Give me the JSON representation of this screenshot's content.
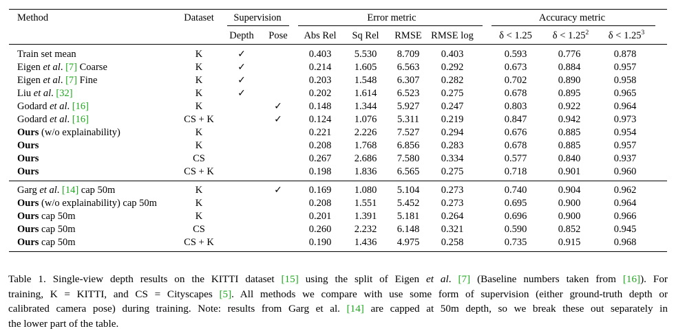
{
  "table": {
    "headers": {
      "method": "Method",
      "dataset": "Dataset",
      "supervision": "Supervision",
      "error_metric": "Error metric",
      "accuracy_metric": "Accuracy metric",
      "depth": "Depth",
      "pose": "Pose",
      "abs_rel": "Abs Rel",
      "sq_rel": "Sq Rel",
      "rmse": "RMSE",
      "rmse_log": "RMSE log",
      "delta1": "δ < 1.25",
      "delta2_base": "δ < 1.25",
      "delta2_exp": "2",
      "delta3_base": "δ < 1.25",
      "delta3_exp": "3"
    },
    "check_mark": "✓",
    "group1": [
      {
        "m1": "Train set mean",
        "ds": "K",
        "depth": true,
        "pose": false,
        "v": [
          "0.403",
          "5.530",
          "8.709",
          "0.403",
          "0.593",
          "0.776",
          "0.878"
        ]
      },
      {
        "m1": "Eigen ",
        "mi": "et al",
        "m2": ". ",
        "cite": "[7]",
        "m3": " Coarse",
        "ds": "K",
        "depth": true,
        "pose": false,
        "v": [
          "0.214",
          "1.605",
          "6.563",
          "0.292",
          "0.673",
          "0.884",
          "0.957"
        ]
      },
      {
        "m1": "Eigen ",
        "mi": "et al",
        "m2": ". ",
        "cite": "[7]",
        "m3": " Fine",
        "ds": "K",
        "depth": true,
        "pose": false,
        "v": [
          "0.203",
          "1.548",
          "6.307",
          "0.282",
          "0.702",
          "0.890",
          "0.958"
        ]
      },
      {
        "m1": "Liu ",
        "mi": "et al",
        "m2": ". ",
        "cite": "[32]",
        "ds": "K",
        "depth": true,
        "pose": false,
        "v": [
          "0.202",
          "1.614",
          "6.523",
          "0.275",
          "0.678",
          "0.895",
          "0.965"
        ]
      },
      {
        "m1": "Godard ",
        "mi": "et al",
        "m2": ". ",
        "cite": "[16]",
        "ds": "K",
        "depth": false,
        "pose": true,
        "v": [
          "0.148",
          "1.344",
          "5.927",
          "0.247",
          "0.803",
          "0.922",
          "0.964"
        ]
      },
      {
        "m1": "Godard ",
        "mi": "et al",
        "m2": ". ",
        "cite": "[16]",
        "ds": "CS + K",
        "depth": false,
        "pose": true,
        "v": [
          "0.124",
          "1.076",
          "5.311",
          "0.219",
          "0.847",
          "0.942",
          "0.973"
        ]
      },
      {
        "mb": "Ours",
        "m3": " (w/o explainability)",
        "ds": "K",
        "depth": false,
        "pose": false,
        "v": [
          "0.221",
          "2.226",
          "7.527",
          "0.294",
          "0.676",
          "0.885",
          "0.954"
        ]
      },
      {
        "mb": "Ours",
        "ds": "K",
        "depth": false,
        "pose": false,
        "v": [
          "0.208",
          "1.768",
          "6.856",
          "0.283",
          "0.678",
          "0.885",
          "0.957"
        ]
      },
      {
        "mb": "Ours",
        "ds": "CS",
        "depth": false,
        "pose": false,
        "v": [
          "0.267",
          "2.686",
          "7.580",
          "0.334",
          "0.577",
          "0.840",
          "0.937"
        ]
      },
      {
        "mb": "Ours",
        "ds": "CS + K",
        "depth": false,
        "pose": false,
        "v": [
          "0.198",
          "1.836",
          "6.565",
          "0.275",
          "0.718",
          "0.901",
          "0.960"
        ]
      }
    ],
    "group2": [
      {
        "m1": "Garg ",
        "mi": "et al",
        "m2": ". ",
        "cite": "[14]",
        "m3": " cap 50m",
        "ds": "K",
        "depth": false,
        "pose": true,
        "v": [
          "0.169",
          "1.080",
          "5.104",
          "0.273",
          "0.740",
          "0.904",
          "0.962"
        ]
      },
      {
        "mb": "Ours",
        "m3": " (w/o explainability) cap 50m",
        "ds": "K",
        "depth": false,
        "pose": false,
        "v": [
          "0.208",
          "1.551",
          "5.452",
          "0.273",
          "0.695",
          "0.900",
          "0.964"
        ]
      },
      {
        "mb": "Ours",
        "m3": " cap 50m",
        "ds": "K",
        "depth": false,
        "pose": false,
        "v": [
          "0.201",
          "1.391",
          "5.181",
          "0.264",
          "0.696",
          "0.900",
          "0.966"
        ]
      },
      {
        "mb": "Ours",
        "m3": " cap 50m",
        "ds": "CS",
        "depth": false,
        "pose": false,
        "v": [
          "0.260",
          "2.232",
          "6.148",
          "0.321",
          "0.590",
          "0.852",
          "0.945"
        ]
      },
      {
        "mb": "Ours",
        "m3": " cap 50m",
        "ds": "CS + K",
        "depth": false,
        "pose": false,
        "v": [
          "0.190",
          "1.436",
          "4.975",
          "0.258",
          "0.735",
          "0.915",
          "0.968"
        ]
      }
    ]
  },
  "caption": {
    "l1a": "Table 1. Single-view depth results on the KITTI dataset ",
    "l1c1": "[15]",
    "l1b": " using the split of Eigen ",
    "l1i": "et al",
    "l1c": ". ",
    "l1c2": "[7]",
    "l1d": " (Baseline numbers taken from ",
    "l1c3": "[16]",
    "l1e": ").  For",
    "l2a": "training, K = KITTI, and CS = Cityscapes ",
    "l2c1": "[5]",
    "l2b": ". All methods we compare with use some form of supervision (either ground-truth depth or",
    "l3a": "calibrated camera pose) during training. Note: results from Garg et al. ",
    "l3c1": "[14]",
    "l3b": " are capped at 50m depth, so we break these out separately in",
    "l4": "the lower part of the table."
  }
}
